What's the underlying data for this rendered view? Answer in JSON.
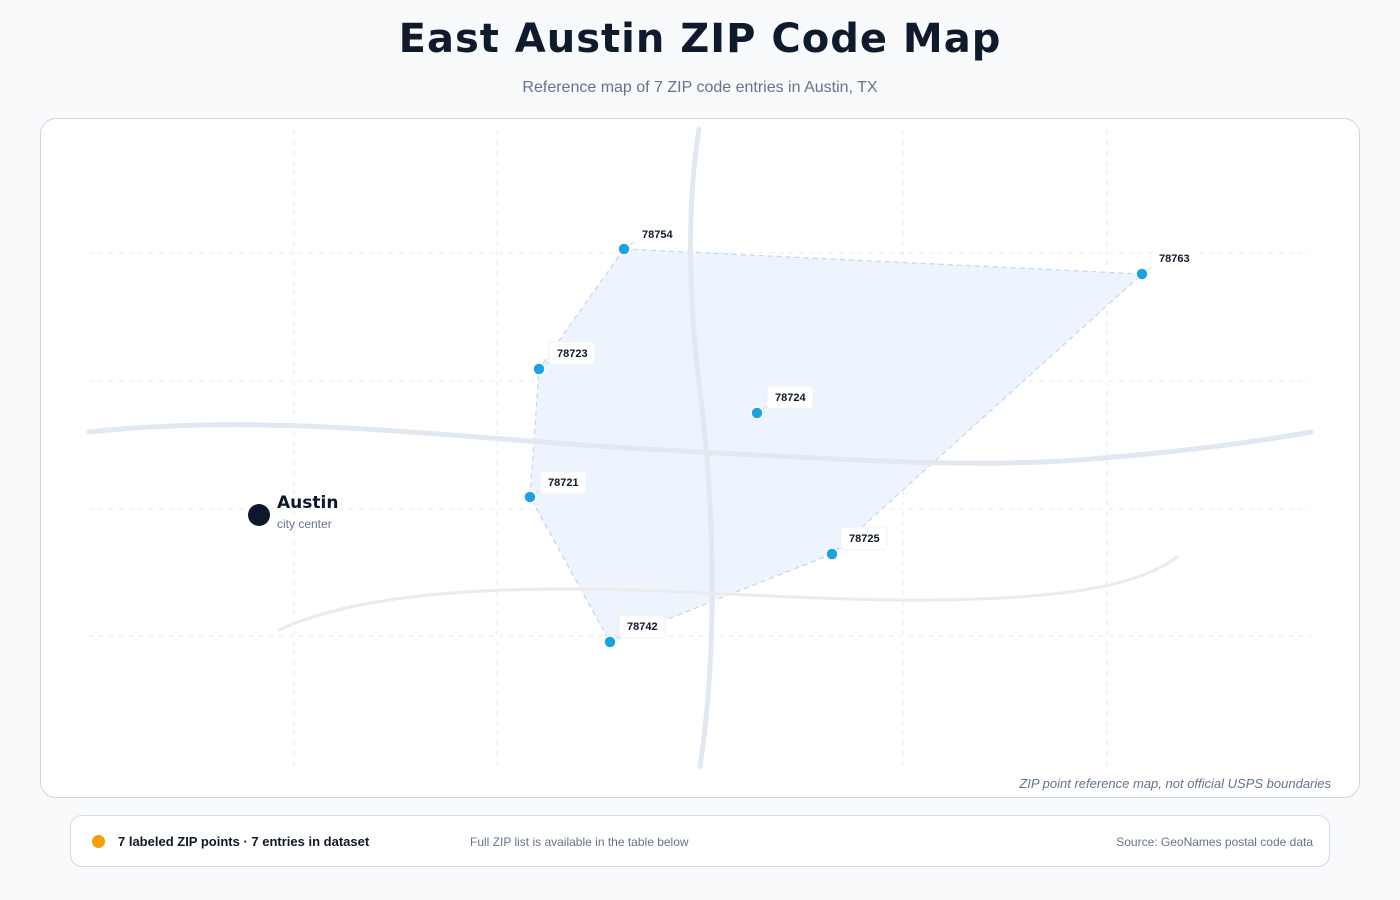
{
  "header": {
    "title": "East Austin ZIP Code Map",
    "subtitle": "Reference map of 7 ZIP code entries in Austin, TX"
  },
  "map": {
    "note": "ZIP point reference map, not official USPS boundaries",
    "city": {
      "name": "Austin",
      "sublabel": "city center"
    },
    "zip_points": [
      {
        "zip": "78754"
      },
      {
        "zip": "78763"
      },
      {
        "zip": "78723"
      },
      {
        "zip": "78724"
      },
      {
        "zip": "78721"
      },
      {
        "zip": "78725"
      },
      {
        "zip": "78742"
      }
    ]
  },
  "footer": {
    "legend_text": "7 labeled ZIP points · 7 entries in dataset",
    "note": "Full ZIP list is available in the table below",
    "source": "Source: GeoNames postal code data"
  },
  "colors": {
    "zip_point": "#1ea1e0",
    "legend_dot": "#f59e0b",
    "city_marker": "#0f172a",
    "coverage_fill": "#eef4fd",
    "coverage_stroke": "#bdd6f3",
    "road": "#e2e8f0",
    "road_light": "#ebebed"
  }
}
